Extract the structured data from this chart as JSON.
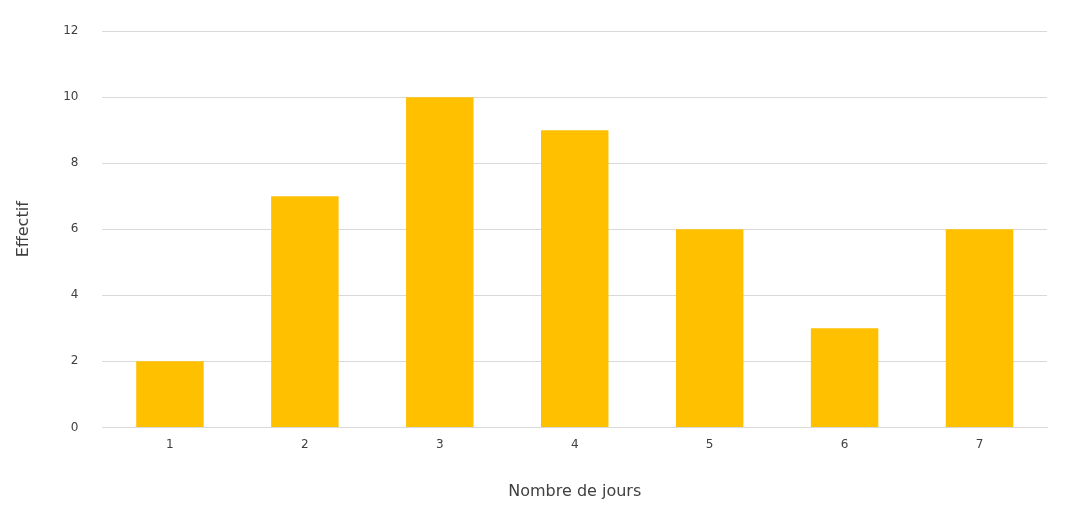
{
  "chart_data": {
    "type": "bar",
    "xlabel": "Nombre de jours",
    "ylabel": "Effectif",
    "categories": [
      "1",
      "2",
      "3",
      "4",
      "5",
      "6",
      "7"
    ],
    "values": [
      2,
      7,
      10,
      9,
      6,
      3,
      6
    ],
    "color": "#ffc000",
    "ylim": [
      0,
      12
    ],
    "yticks": [
      0,
      2,
      4,
      6,
      8,
      10,
      12
    ],
    "grid": "y",
    "legend": false
  }
}
